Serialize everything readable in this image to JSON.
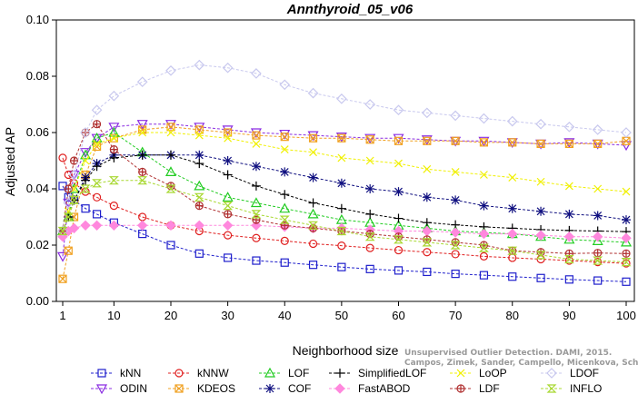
{
  "chart_data": {
    "type": "line",
    "title": "Annthyroid_05_v06",
    "xlabel": "Neighborhood size",
    "ylabel": "Adjusted AP",
    "xlim": [
      1,
      100
    ],
    "ylim": [
      0.0,
      0.1
    ],
    "xticks": [
      "1",
      "10",
      "20",
      "30",
      "40",
      "50",
      "60",
      "70",
      "80",
      "90",
      "100"
    ],
    "yticks": [
      "0.00",
      "0.02",
      "0.04",
      "0.06",
      "0.08",
      "0.10"
    ],
    "grid": false,
    "legend_position": "bottom",
    "watermark": [
      "Unsupervised Outlier Detection. DAMI, 2015.",
      "Campos, Zimek, Sander, Campello, Micenkova, Schubert, Assent, Houle"
    ],
    "x": [
      1,
      2,
      3,
      5,
      7,
      10,
      15,
      20,
      25,
      30,
      35,
      40,
      45,
      50,
      55,
      60,
      65,
      70,
      75,
      80,
      85,
      90,
      95,
      100
    ],
    "series": [
      {
        "name": "kNN",
        "color": "#1f1fcc",
        "marker": "square",
        "values": [
          0.041,
          0.037,
          0.036,
          0.033,
          0.031,
          0.028,
          0.024,
          0.02,
          0.017,
          0.0155,
          0.0145,
          0.0138,
          0.013,
          0.0122,
          0.0115,
          0.011,
          0.0105,
          0.0098,
          0.0093,
          0.0088,
          0.0083,
          0.0078,
          0.0074,
          0.007
        ]
      },
      {
        "name": "ODIN",
        "color": "#8a2be2",
        "marker": "triangle-down",
        "values": [
          0.016,
          0.035,
          0.045,
          0.053,
          0.058,
          0.062,
          0.063,
          0.063,
          0.062,
          0.061,
          0.06,
          0.0595,
          0.059,
          0.0585,
          0.058,
          0.058,
          0.0575,
          0.057,
          0.057,
          0.0565,
          0.056,
          0.0565,
          0.056,
          0.0555
        ]
      },
      {
        "name": "kNNW",
        "color": "#e02020",
        "marker": "circle",
        "values": [
          0.051,
          0.045,
          0.042,
          0.039,
          0.037,
          0.034,
          0.03,
          0.027,
          0.025,
          0.0235,
          0.0225,
          0.0215,
          0.0205,
          0.0198,
          0.019,
          0.0182,
          0.0175,
          0.0168,
          0.016,
          0.0155,
          0.015,
          0.0145,
          0.014,
          0.0135
        ]
      },
      {
        "name": "KDEOS",
        "color": "#f0a020",
        "marker": "square-x",
        "values": [
          0.008,
          0.018,
          0.03,
          0.045,
          0.055,
          0.058,
          0.061,
          0.062,
          0.061,
          0.06,
          0.059,
          0.0585,
          0.058,
          0.058,
          0.0575,
          0.057,
          0.057,
          0.057,
          0.0565,
          0.0565,
          0.056,
          0.056,
          0.056,
          0.057
        ]
      },
      {
        "name": "LOF",
        "color": "#22cc22",
        "marker": "triangle",
        "values": [
          0.025,
          0.03,
          0.04,
          0.052,
          0.058,
          0.06,
          0.053,
          0.046,
          0.041,
          0.037,
          0.035,
          0.033,
          0.031,
          0.029,
          0.028,
          0.027,
          0.026,
          0.025,
          0.0245,
          0.024,
          0.023,
          0.022,
          0.0215,
          0.021
        ]
      },
      {
        "name": "COF",
        "color": "#101080",
        "marker": "star",
        "values": [
          0.025,
          0.03,
          0.036,
          0.044,
          0.049,
          0.052,
          0.052,
          0.052,
          0.052,
          0.05,
          0.048,
          0.046,
          0.044,
          0.042,
          0.04,
          0.039,
          0.037,
          0.036,
          0.034,
          0.033,
          0.032,
          0.031,
          0.0305,
          0.029
        ]
      },
      {
        "name": "SimplifiedLOF",
        "color": "#000000",
        "marker": "plus",
        "values": [
          0.025,
          0.03,
          0.036,
          0.043,
          0.048,
          0.051,
          0.052,
          0.052,
          0.049,
          0.045,
          0.041,
          0.038,
          0.035,
          0.033,
          0.031,
          0.0295,
          0.028,
          0.0272,
          0.0265,
          0.026,
          0.0255,
          0.0252,
          0.025,
          0.0248
        ]
      },
      {
        "name": "FastABOD",
        "color": "#ff88dd",
        "marker": "diamond-filled",
        "values": [
          0.023,
          0.025,
          0.026,
          0.027,
          0.027,
          0.027,
          0.027,
          0.027,
          0.027,
          0.027,
          0.027,
          0.0265,
          0.026,
          0.026,
          0.0255,
          0.025,
          0.025,
          0.0245,
          0.024,
          0.024,
          0.0235,
          0.023,
          0.023,
          0.0225
        ]
      },
      {
        "name": "LoOP",
        "color": "#f0f000",
        "marker": "x",
        "values": [
          0.025,
          0.032,
          0.04,
          0.05,
          0.056,
          0.058,
          0.06,
          0.06,
          0.059,
          0.058,
          0.056,
          0.054,
          0.053,
          0.051,
          0.05,
          0.049,
          0.047,
          0.046,
          0.045,
          0.044,
          0.0425,
          0.041,
          0.04,
          0.039
        ]
      },
      {
        "name": "LDF",
        "color": "#b03030",
        "marker": "circle-plus",
        "values": [
          0.025,
          0.04,
          0.05,
          0.06,
          0.063,
          0.054,
          0.046,
          0.041,
          0.034,
          0.031,
          0.029,
          0.027,
          0.026,
          0.025,
          0.024,
          0.023,
          0.022,
          0.021,
          0.02,
          0.018,
          0.0175,
          0.017,
          0.0172,
          0.017
        ]
      },
      {
        "name": "LDOF",
        "color": "#c8c8ee",
        "marker": "diamond",
        "values": [
          0.025,
          0.035,
          0.045,
          0.06,
          0.068,
          0.073,
          0.078,
          0.082,
          0.084,
          0.083,
          0.081,
          0.077,
          0.074,
          0.072,
          0.07,
          0.068,
          0.067,
          0.066,
          0.065,
          0.064,
          0.063,
          0.062,
          0.061,
          0.06
        ]
      },
      {
        "name": "INFLO",
        "color": "#a8d830",
        "marker": "hourglass",
        "values": [
          0.025,
          0.03,
          0.036,
          0.04,
          0.042,
          0.043,
          0.043,
          0.04,
          0.037,
          0.034,
          0.031,
          0.029,
          0.027,
          0.025,
          0.023,
          0.022,
          0.021,
          0.02,
          0.019,
          0.018,
          0.0165,
          0.015,
          0.0145,
          0.014
        ]
      }
    ]
  }
}
